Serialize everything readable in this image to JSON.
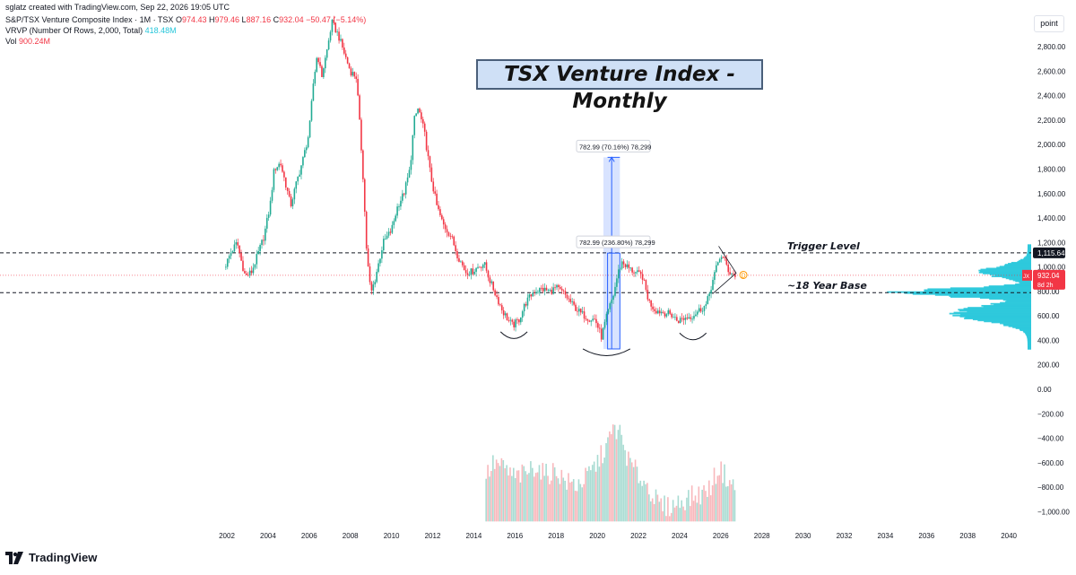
{
  "header": {
    "attribution": "sglatz created with TradingView.com, Sep 22, 2026 19:05 UTC",
    "symbol_line": "S&P/TSX Venture Composite Index · 1M · TSX",
    "o_label": "O",
    "o_value": "974.43",
    "h_label": "H",
    "h_value": "979.46",
    "l_label": "L",
    "l_value": "887.16",
    "c_label": "C",
    "c_value": "932.04",
    "change": "−50.47 (−5.14%)",
    "vrvp_label": "VRVP (Number Of Rows, 2,000, Total)",
    "vrvp_value": "418.48M",
    "vol_label": "Vol",
    "vol_value": "900.24M"
  },
  "title": "TSX Venture Index - Monthly",
  "unit_button": "point",
  "brand": "TradingView",
  "annotations": {
    "trigger": "Trigger Level",
    "base": "~18 Year Base",
    "measure_top": "782.99 (70.16%) 78,299",
    "measure_mid": "782.99 (236.80%) 78,299"
  },
  "price_badges": {
    "trigger_value": "1,115.64",
    "last_symbol": "JX",
    "last_value": "932.04",
    "last_countdown": "8d 2h"
  },
  "colors": {
    "up": "#22ab94",
    "down": "#f23645",
    "volume_up": "#a8dbd2",
    "volume_down": "#f8b8bc",
    "profile": "#26c6da",
    "measure": "#2962ff",
    "grid_line": "#131722"
  },
  "chart_data": {
    "type": "candlestick",
    "y_ticks": [
      "2,800.00",
      "2,600.00",
      "2,400.00",
      "2,200.00",
      "2,000.00",
      "1,800.00",
      "1,600.00",
      "1,400.00",
      "1,200.00",
      "1,000.00",
      "800.00",
      "600.00",
      "400.00",
      "200.00",
      "0.00",
      "−200.00",
      "−400.00",
      "−600.00",
      "−800.00",
      "−1,000.00"
    ],
    "x_ticks": [
      "2002",
      "2004",
      "2006",
      "2008",
      "2010",
      "2012",
      "2014",
      "2016",
      "2018",
      "2020",
      "2022",
      "2024",
      "2026",
      "2028",
      "2030",
      "2032",
      "2034",
      "2036",
      "2038",
      "2040"
    ],
    "ylim": [
      -1150,
      2960
    ],
    "trigger_level": 1115.64,
    "base_level": 790,
    "last_close": 932.04,
    "close_path": [
      [
        2001.9,
        1000
      ],
      [
        2002.2,
        1120
      ],
      [
        2002.5,
        1200
      ],
      [
        2002.7,
        1050
      ],
      [
        2002.9,
        920
      ],
      [
        2003.2,
        960
      ],
      [
        2003.5,
        1100
      ],
      [
        2003.8,
        1250
      ],
      [
        2004.1,
        1500
      ],
      [
        2004.3,
        1800
      ],
      [
        2004.6,
        1850
      ],
      [
        2004.9,
        1650
      ],
      [
        2005.1,
        1500
      ],
      [
        2005.4,
        1700
      ],
      [
        2005.7,
        1880
      ],
      [
        2006.0,
        2100
      ],
      [
        2006.2,
        2500
      ],
      [
        2006.4,
        2750
      ],
      [
        2006.6,
        2550
      ],
      [
        2006.9,
        2800
      ],
      [
        2007.1,
        3000
      ],
      [
        2007.4,
        2900
      ],
      [
        2007.7,
        2750
      ],
      [
        2008.0,
        2600
      ],
      [
        2008.3,
        2550
      ],
      [
        2008.6,
        1800
      ],
      [
        2008.8,
        1100
      ],
      [
        2009.0,
        780
      ],
      [
        2009.2,
        900
      ],
      [
        2009.6,
        1200
      ],
      [
        2010.0,
        1300
      ],
      [
        2010.3,
        1500
      ],
      [
        2010.6,
        1600
      ],
      [
        2010.9,
        1800
      ],
      [
        2011.1,
        2200
      ],
      [
        2011.3,
        2300
      ],
      [
        2011.6,
        2100
      ],
      [
        2011.9,
        1750
      ],
      [
        2012.2,
        1500
      ],
      [
        2012.5,
        1350
      ],
      [
        2012.9,
        1250
      ],
      [
        2013.2,
        1100
      ],
      [
        2013.6,
        960
      ],
      [
        2013.9,
        960
      ],
      [
        2014.2,
        1000
      ],
      [
        2014.5,
        1030
      ],
      [
        2014.8,
        880
      ],
      [
        2015.1,
        760
      ],
      [
        2015.4,
        640
      ],
      [
        2015.7,
        560
      ],
      [
        2015.9,
        520
      ],
      [
        2016.2,
        570
      ],
      [
        2016.5,
        700
      ],
      [
        2016.9,
        800
      ],
      [
        2017.3,
        820
      ],
      [
        2017.7,
        800
      ],
      [
        2018.0,
        830
      ],
      [
        2018.4,
        780
      ],
      [
        2018.8,
        690
      ],
      [
        2019.2,
        620
      ],
      [
        2019.6,
        580
      ],
      [
        2019.9,
        570
      ],
      [
        2020.2,
        430
      ],
      [
        2020.5,
        620
      ],
      [
        2020.8,
        780
      ],
      [
        2021.0,
        950
      ],
      [
        2021.2,
        1040
      ],
      [
        2021.6,
        980
      ],
      [
        2021.9,
        950
      ],
      [
        2022.2,
        920
      ],
      [
        2022.5,
        720
      ],
      [
        2022.8,
        650
      ],
      [
        2023.2,
        630
      ],
      [
        2023.6,
        610
      ],
      [
        2023.9,
        560
      ],
      [
        2024.2,
        580
      ],
      [
        2024.6,
        600
      ],
      [
        2024.9,
        640
      ],
      [
        2025.3,
        690
      ],
      [
        2025.6,
        880
      ],
      [
        2025.8,
        1000
      ],
      [
        2026.0,
        1100
      ],
      [
        2026.2,
        1050
      ],
      [
        2026.4,
        960
      ],
      [
        2026.6,
        940
      ],
      [
        2026.7,
        932
      ]
    ],
    "volume_path": [
      [
        2014.6,
        -700
      ],
      [
        2015.0,
        -600
      ],
      [
        2015.5,
        -650
      ],
      [
        2016.0,
        -720
      ],
      [
        2016.5,
        -690
      ],
      [
        2017.0,
        -620
      ],
      [
        2017.5,
        -700
      ],
      [
        2018.0,
        -660
      ],
      [
        2018.5,
        -760
      ],
      [
        2019.0,
        -780
      ],
      [
        2019.5,
        -720
      ],
      [
        2020.0,
        -600
      ],
      [
        2020.5,
        -450
      ],
      [
        2020.8,
        -320
      ],
      [
        2021.1,
        -360
      ],
      [
        2021.5,
        -580
      ],
      [
        2022.0,
        -700
      ],
      [
        2022.5,
        -800
      ],
      [
        2023.0,
        -950
      ],
      [
        2023.5,
        -960
      ],
      [
        2024.0,
        -920
      ],
      [
        2024.5,
        -880
      ],
      [
        2025.0,
        -860
      ],
      [
        2025.5,
        -800
      ],
      [
        2025.9,
        -640
      ],
      [
        2026.3,
        -720
      ],
      [
        2026.7,
        -820
      ]
    ],
    "measure_range": {
      "x": [
        2020.3,
        2021.1
      ],
      "y_low": 330,
      "y_mid": 1113,
      "y_high": 1896
    }
  }
}
